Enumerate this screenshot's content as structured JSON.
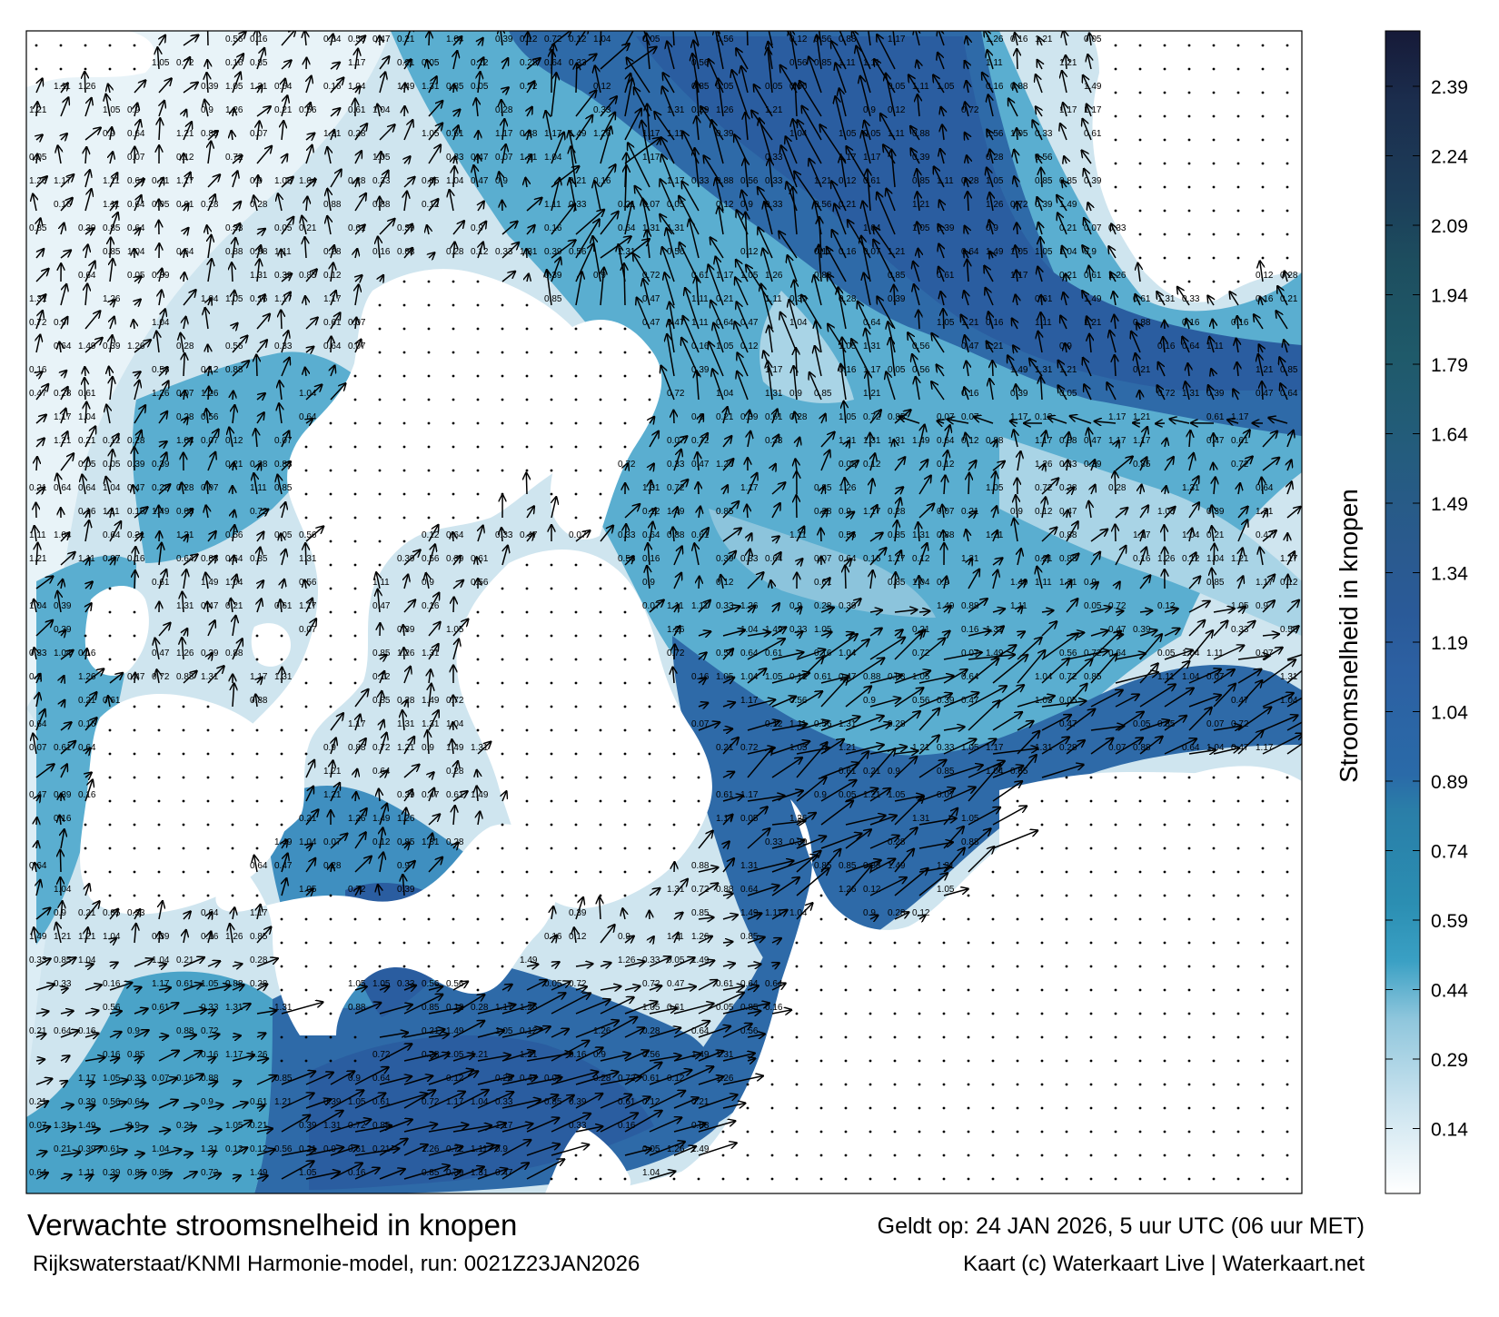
{
  "title": "Verwachte stroomsnelheid in knopen",
  "validity": "Geldt op: 24 JAN 2026, 5 uur UTC (06 uur MET)",
  "model": "Rijkswaterstaat/KNMI Harmonie-model, run: 0021Z23JAN2026",
  "credit": "Kaart (c) Waterkaart Live | Waterkaart.net",
  "colorbar": {
    "label": "Stroomsnelheid in knopen",
    "ticks": [
      "2.39",
      "2.24",
      "2.09",
      "1.94",
      "1.79",
      "1.64",
      "1.49",
      "1.34",
      "1.19",
      "1.04",
      "0.89",
      "0.74",
      "0.59",
      "0.44",
      "0.29",
      "0.14"
    ],
    "colors": [
      "#1e2040",
      "#1c2d4e",
      "#1d3d5c",
      "#1e4c62",
      "#1e5c6e",
      "#235c82",
      "#23577f",
      "#25588c",
      "#2a5d9c",
      "#2e63a4",
      "#2b6ea8",
      "#2a7ea8",
      "#2b8eb2",
      "#3aa0c4",
      "#7cc0da",
      "#b8dcea",
      "#eaf4f9"
    ]
  },
  "sample_speeds": [
    "1.05",
    "1.11",
    "0.85",
    "0.72",
    "0.33",
    "0.16",
    "1.31",
    "1.26",
    "0.9",
    "0.47",
    "0.12",
    "0.05",
    "1.17",
    "0.61",
    "1.49",
    "0.07",
    "0.39",
    "0.88",
    "0.21",
    "0.56",
    "1.04",
    "0.28",
    "0.64",
    "1.21"
  ]
}
